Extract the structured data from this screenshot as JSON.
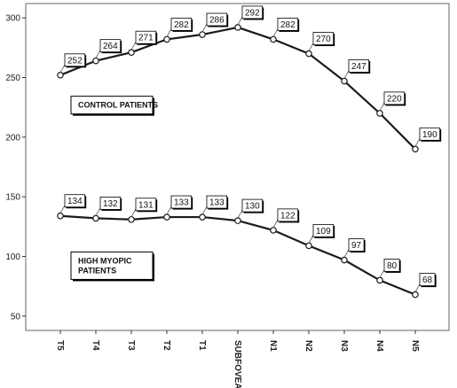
{
  "chart_data": {
    "type": "line",
    "categories": [
      "T5",
      "T4",
      "T3",
      "T2",
      "T1",
      "SUBFOVEAL",
      "N1",
      "N2",
      "N3",
      "N4",
      "N5"
    ],
    "series": [
      {
        "values": [
          252,
          264,
          271,
          282,
          286,
          292,
          282,
          270,
          247,
          220,
          190
        ]
      },
      {
        "values": [
          134,
          132,
          131,
          133,
          133,
          130,
          122,
          109,
          97,
          80,
          68
        ]
      }
    ],
    "data_labels": [
      [
        "252",
        "264",
        "271",
        "282",
        "286",
        "292",
        "282",
        "270",
        "247",
        "220",
        "190"
      ],
      [
        "134",
        "132",
        "131",
        "133",
        "133",
        "130",
        "122",
        "109",
        "97",
        "80",
        "68"
      ]
    ],
    "annotations": [
      {
        "lines": [
          "CONTROL PATIENTS"
        ],
        "near_series": 0
      },
      {
        "lines": [
          "HIGH MYOPIC",
          "PATIENTS"
        ],
        "near_series": 1
      }
    ],
    "y_ticks": [
      "50",
      "100",
      "150",
      "200",
      "250",
      "300"
    ],
    "ylim": [
      38,
      312
    ],
    "grid": false,
    "legend": "none",
    "title": "",
    "xlabel": "",
    "ylabel": "",
    "colors": {
      "line": "#1a1a1a",
      "marker_fill": "#ffffff",
      "background": "#ffffff"
    }
  }
}
